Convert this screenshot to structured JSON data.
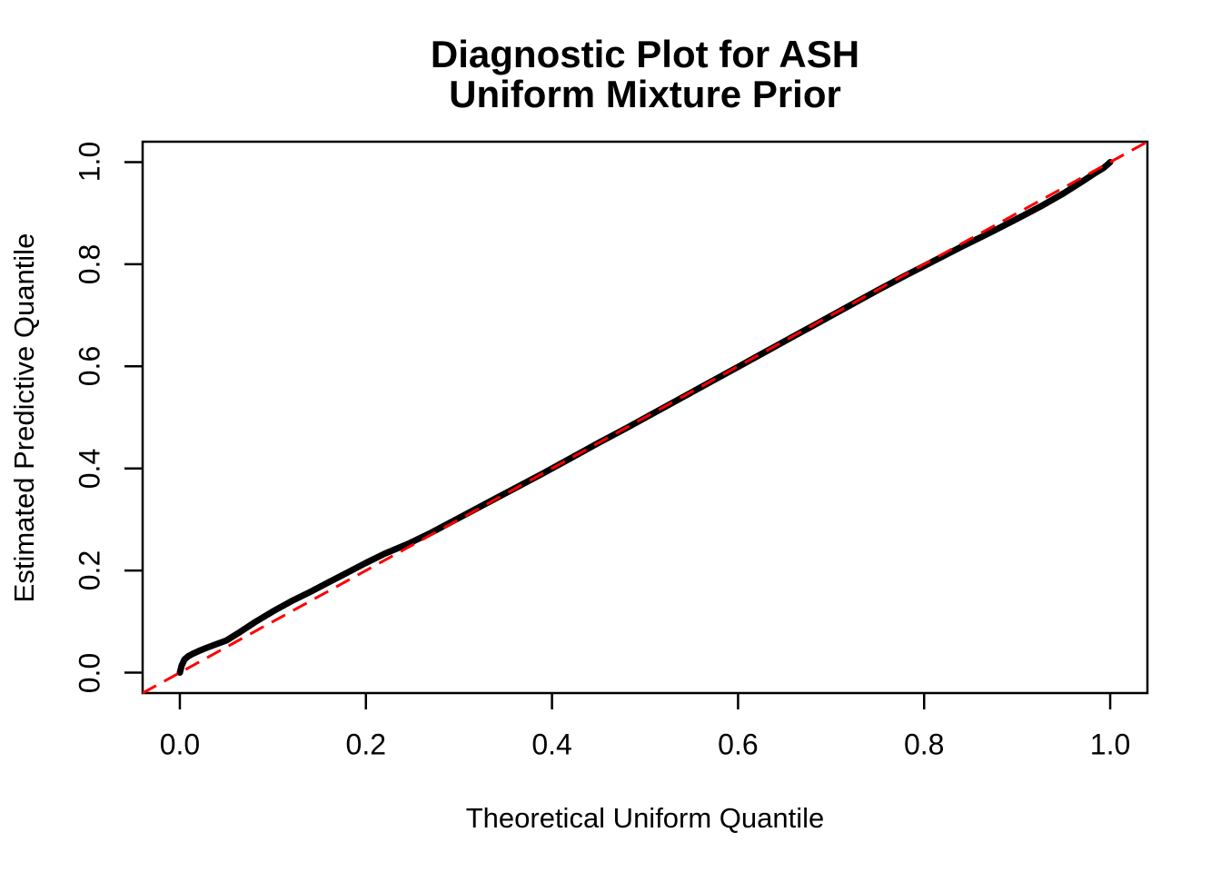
{
  "figure": {
    "title_lines": [
      "Diagnostic Plot for ASH",
      "Uniform Mixture Prior"
    ]
  },
  "chart_data": {
    "type": "scatter",
    "title": "Diagnostic Plot for ASH Uniform Mixture Prior",
    "xlabel": "Theoretical Uniform Quantile",
    "ylabel": "Estimated Predictive Quantile",
    "x_ticks": [
      0.0,
      0.2,
      0.4,
      0.6,
      0.8,
      1.0
    ],
    "y_ticks": [
      0.0,
      0.2,
      0.4,
      0.6,
      0.8,
      1.0
    ],
    "x_tick_labels": [
      "0.0",
      "0.2",
      "0.4",
      "0.6",
      "0.8",
      "1.0"
    ],
    "y_tick_labels": [
      "0.0",
      "0.2",
      "0.4",
      "0.6",
      "0.8",
      "1.0"
    ],
    "xlim": [
      0,
      1
    ],
    "ylim": [
      0,
      1
    ],
    "axis_expansion_range": [
      -0.04,
      1.04
    ],
    "grid": false,
    "legend": false,
    "point_color": "#000000",
    "background": "#ffffff",
    "reference_line": {
      "intercept": 0,
      "slope": 1,
      "color": "#ff0000",
      "style": "dashed"
    },
    "points": [
      [
        0.0,
        0.0
      ],
      [
        0.002,
        0.014
      ],
      [
        0.005,
        0.026
      ],
      [
        0.009,
        0.032
      ],
      [
        0.014,
        0.037
      ],
      [
        0.02,
        0.042
      ],
      [
        0.028,
        0.048
      ],
      [
        0.038,
        0.055
      ],
      [
        0.05,
        0.063
      ],
      [
        0.065,
        0.08
      ],
      [
        0.08,
        0.098
      ],
      [
        0.1,
        0.12
      ],
      [
        0.12,
        0.14
      ],
      [
        0.14,
        0.158
      ],
      [
        0.16,
        0.177
      ],
      [
        0.18,
        0.196
      ],
      [
        0.2,
        0.215
      ],
      [
        0.22,
        0.233
      ],
      [
        0.245,
        0.252
      ],
      [
        0.27,
        0.274
      ],
      [
        0.3,
        0.303
      ],
      [
        0.33,
        0.332
      ],
      [
        0.36,
        0.361
      ],
      [
        0.39,
        0.39
      ],
      [
        0.42,
        0.42
      ],
      [
        0.45,
        0.45
      ],
      [
        0.48,
        0.479
      ],
      [
        0.51,
        0.509
      ],
      [
        0.54,
        0.539
      ],
      [
        0.57,
        0.569
      ],
      [
        0.6,
        0.599
      ],
      [
        0.63,
        0.629
      ],
      [
        0.66,
        0.659
      ],
      [
        0.69,
        0.689
      ],
      [
        0.72,
        0.719
      ],
      [
        0.75,
        0.749
      ],
      [
        0.78,
        0.778
      ],
      [
        0.81,
        0.806
      ],
      [
        0.84,
        0.834
      ],
      [
        0.87,
        0.861
      ],
      [
        0.9,
        0.889
      ],
      [
        0.925,
        0.913
      ],
      [
        0.95,
        0.939
      ],
      [
        0.97,
        0.962
      ],
      [
        0.985,
        0.98
      ],
      [
        0.993,
        0.989
      ],
      [
        0.997,
        0.995
      ],
      [
        1.0,
        1.0
      ]
    ]
  }
}
